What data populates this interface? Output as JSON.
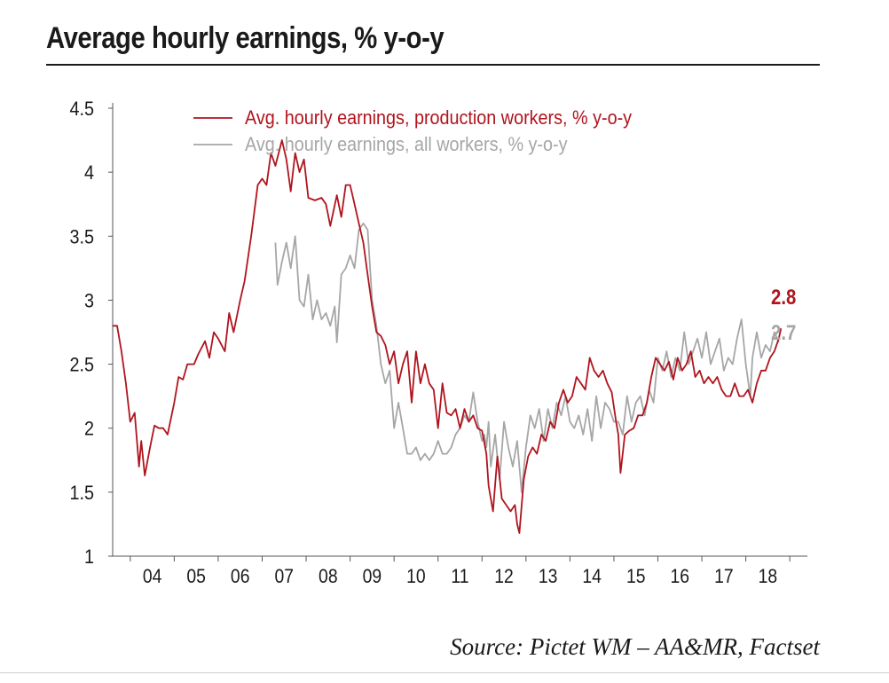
{
  "title": "Average hourly earnings, % y-o-y",
  "source": "Source: Pictet WM – AA&MR, Factset",
  "colors": {
    "production": "#b0141d",
    "all": "#a6a6a6",
    "axis": "#555555",
    "text": "#1a1a1a"
  },
  "chart_data": {
    "type": "line",
    "title": "Average hourly earnings, % y-o-y",
    "xlabel": "",
    "ylabel": "",
    "ylim": [
      1,
      4.5
    ],
    "xlim": [
      2003.6,
      2019.4
    ],
    "yticks": [
      "1",
      "1.5",
      "2",
      "2.5",
      "3",
      "3.5",
      "4",
      "4.5"
    ],
    "xticks": [
      {
        "label": "04",
        "x": 2004.5
      },
      {
        "label": "05",
        "x": 2005.5
      },
      {
        "label": "06",
        "x": 2006.5
      },
      {
        "label": "07",
        "x": 2007.5
      },
      {
        "label": "08",
        "x": 2008.5
      },
      {
        "label": "09",
        "x": 2009.5
      },
      {
        "label": "10",
        "x": 2010.5
      },
      {
        "label": "11",
        "x": 2011.5
      },
      {
        "label": "12",
        "x": 2012.5
      },
      {
        "label": "13",
        "x": 2013.5
      },
      {
        "label": "14",
        "x": 2014.5
      },
      {
        "label": "15",
        "x": 2015.5
      },
      {
        "label": "16",
        "x": 2016.5
      },
      {
        "label": "17",
        "x": 2017.5
      },
      {
        "label": "18",
        "x": 2018.5
      }
    ],
    "grid": false,
    "legend_position": "top-left",
    "series": [
      {
        "name": "Avg. hourly earnings, production workers, % y-o-y",
        "color": "#b0141d",
        "end_label": "2.8",
        "points": [
          [
            2003.6,
            2.8
          ],
          [
            2003.7,
            2.8
          ],
          [
            2003.8,
            2.6
          ],
          [
            2003.9,
            2.35
          ],
          [
            2004.0,
            2.05
          ],
          [
            2004.1,
            2.12
          ],
          [
            2004.2,
            1.7
          ],
          [
            2004.25,
            1.9
          ],
          [
            2004.33,
            1.63
          ],
          [
            2004.45,
            1.85
          ],
          [
            2004.55,
            2.02
          ],
          [
            2004.65,
            2.0
          ],
          [
            2004.75,
            2.0
          ],
          [
            2004.85,
            1.95
          ],
          [
            2005.0,
            2.2
          ],
          [
            2005.1,
            2.4
          ],
          [
            2005.2,
            2.38
          ],
          [
            2005.3,
            2.5
          ],
          [
            2005.45,
            2.5
          ],
          [
            2005.55,
            2.58
          ],
          [
            2005.7,
            2.68
          ],
          [
            2005.8,
            2.55
          ],
          [
            2005.9,
            2.75
          ],
          [
            2006.0,
            2.7
          ],
          [
            2006.15,
            2.6
          ],
          [
            2006.25,
            2.9
          ],
          [
            2006.35,
            2.75
          ],
          [
            2006.5,
            3.0
          ],
          [
            2006.6,
            3.15
          ],
          [
            2006.75,
            3.5
          ],
          [
            2006.9,
            3.9
          ],
          [
            2007.0,
            3.95
          ],
          [
            2007.1,
            3.9
          ],
          [
            2007.2,
            4.15
          ],
          [
            2007.3,
            4.05
          ],
          [
            2007.45,
            4.25
          ],
          [
            2007.55,
            4.1
          ],
          [
            2007.65,
            3.85
          ],
          [
            2007.75,
            4.15
          ],
          [
            2007.85,
            4.0
          ],
          [
            2007.95,
            4.1
          ],
          [
            2008.05,
            3.8
          ],
          [
            2008.2,
            3.78
          ],
          [
            2008.35,
            3.8
          ],
          [
            2008.45,
            3.75
          ],
          [
            2008.55,
            3.58
          ],
          [
            2008.7,
            3.82
          ],
          [
            2008.8,
            3.65
          ],
          [
            2008.9,
            3.9
          ],
          [
            2009.0,
            3.9
          ],
          [
            2009.1,
            3.75
          ],
          [
            2009.2,
            3.6
          ],
          [
            2009.3,
            3.45
          ],
          [
            2009.4,
            3.2
          ],
          [
            2009.5,
            2.95
          ],
          [
            2009.6,
            2.75
          ],
          [
            2009.7,
            2.72
          ],
          [
            2009.8,
            2.65
          ],
          [
            2009.9,
            2.5
          ],
          [
            2010.0,
            2.6
          ],
          [
            2010.1,
            2.35
          ],
          [
            2010.2,
            2.5
          ],
          [
            2010.3,
            2.6
          ],
          [
            2010.4,
            2.2
          ],
          [
            2010.5,
            2.6
          ],
          [
            2010.6,
            2.35
          ],
          [
            2010.7,
            2.5
          ],
          [
            2010.8,
            2.35
          ],
          [
            2010.9,
            2.3
          ],
          [
            2011.0,
            2.0
          ],
          [
            2011.1,
            2.35
          ],
          [
            2011.2,
            2.12
          ],
          [
            2011.3,
            2.1
          ],
          [
            2011.4,
            2.15
          ],
          [
            2011.5,
            2.0
          ],
          [
            2011.6,
            2.15
          ],
          [
            2011.7,
            2.05
          ],
          [
            2011.8,
            2.1
          ],
          [
            2011.9,
            2.0
          ],
          [
            2012.0,
            1.98
          ],
          [
            2012.1,
            1.8
          ],
          [
            2012.15,
            1.55
          ],
          [
            2012.2,
            1.45
          ],
          [
            2012.25,
            1.35
          ],
          [
            2012.35,
            1.78
          ],
          [
            2012.45,
            1.45
          ],
          [
            2012.55,
            1.4
          ],
          [
            2012.65,
            1.35
          ],
          [
            2012.75,
            1.4
          ],
          [
            2012.8,
            1.25
          ],
          [
            2012.85,
            1.18
          ],
          [
            2012.95,
            1.6
          ],
          [
            2013.05,
            1.78
          ],
          [
            2013.15,
            1.85
          ],
          [
            2013.25,
            1.8
          ],
          [
            2013.35,
            1.95
          ],
          [
            2013.45,
            1.9
          ],
          [
            2013.55,
            2.05
          ],
          [
            2013.65,
            2.0
          ],
          [
            2013.75,
            2.2
          ],
          [
            2013.85,
            2.3
          ],
          [
            2013.95,
            2.2
          ],
          [
            2014.05,
            2.25
          ],
          [
            2014.15,
            2.4
          ],
          [
            2014.25,
            2.35
          ],
          [
            2014.35,
            2.3
          ],
          [
            2014.45,
            2.55
          ],
          [
            2014.55,
            2.45
          ],
          [
            2014.65,
            2.4
          ],
          [
            2014.75,
            2.45
          ],
          [
            2014.85,
            2.35
          ],
          [
            2014.95,
            2.28
          ],
          [
            2015.05,
            2.05
          ],
          [
            2015.1,
            1.95
          ],
          [
            2015.15,
            1.65
          ],
          [
            2015.25,
            1.95
          ],
          [
            2015.35,
            1.98
          ],
          [
            2015.45,
            2.0
          ],
          [
            2015.55,
            2.1
          ],
          [
            2015.65,
            2.1
          ],
          [
            2015.75,
            2.2
          ],
          [
            2015.85,
            2.4
          ],
          [
            2015.95,
            2.55
          ],
          [
            2016.05,
            2.5
          ],
          [
            2016.15,
            2.45
          ],
          [
            2016.25,
            2.52
          ],
          [
            2016.35,
            2.38
          ],
          [
            2016.45,
            2.55
          ],
          [
            2016.55,
            2.45
          ],
          [
            2016.65,
            2.5
          ],
          [
            2016.75,
            2.6
          ],
          [
            2016.85,
            2.4
          ],
          [
            2016.95,
            2.45
          ],
          [
            2017.05,
            2.35
          ],
          [
            2017.15,
            2.4
          ],
          [
            2017.25,
            2.35
          ],
          [
            2017.35,
            2.4
          ],
          [
            2017.45,
            2.3
          ],
          [
            2017.55,
            2.25
          ],
          [
            2017.65,
            2.25
          ],
          [
            2017.75,
            2.35
          ],
          [
            2017.85,
            2.25
          ],
          [
            2017.95,
            2.25
          ],
          [
            2018.05,
            2.3
          ],
          [
            2018.15,
            2.2
          ],
          [
            2018.25,
            2.35
          ],
          [
            2018.35,
            2.45
          ],
          [
            2018.45,
            2.45
          ],
          [
            2018.55,
            2.55
          ],
          [
            2018.65,
            2.6
          ],
          [
            2018.75,
            2.7
          ],
          [
            2018.8,
            2.78
          ]
        ]
      },
      {
        "name": "Avg. hourly earnings, all workers, % y-o-y",
        "color": "#a6a6a6",
        "end_label": "2.7",
        "points": [
          [
            2007.3,
            3.45
          ],
          [
            2007.35,
            3.12
          ],
          [
            2007.45,
            3.3
          ],
          [
            2007.55,
            3.45
          ],
          [
            2007.65,
            3.25
          ],
          [
            2007.75,
            3.5
          ],
          [
            2007.85,
            3.0
          ],
          [
            2007.95,
            2.95
          ],
          [
            2008.05,
            3.2
          ],
          [
            2008.15,
            2.85
          ],
          [
            2008.25,
            3.0
          ],
          [
            2008.35,
            2.85
          ],
          [
            2008.45,
            2.9
          ],
          [
            2008.55,
            2.8
          ],
          [
            2008.65,
            2.95
          ],
          [
            2008.7,
            2.67
          ],
          [
            2008.8,
            3.2
          ],
          [
            2008.9,
            3.25
          ],
          [
            2009.0,
            3.35
          ],
          [
            2009.1,
            3.25
          ],
          [
            2009.2,
            3.55
          ],
          [
            2009.3,
            3.6
          ],
          [
            2009.4,
            3.55
          ],
          [
            2009.5,
            3.0
          ],
          [
            2009.6,
            2.8
          ],
          [
            2009.7,
            2.5
          ],
          [
            2009.8,
            2.35
          ],
          [
            2009.9,
            2.45
          ],
          [
            2010.0,
            2.0
          ],
          [
            2010.1,
            2.2
          ],
          [
            2010.2,
            2.0
          ],
          [
            2010.3,
            1.8
          ],
          [
            2010.4,
            1.8
          ],
          [
            2010.5,
            1.85
          ],
          [
            2010.6,
            1.75
          ],
          [
            2010.7,
            1.8
          ],
          [
            2010.8,
            1.75
          ],
          [
            2010.9,
            1.8
          ],
          [
            2011.0,
            1.9
          ],
          [
            2011.1,
            1.8
          ],
          [
            2011.2,
            1.8
          ],
          [
            2011.3,
            1.85
          ],
          [
            2011.4,
            1.95
          ],
          [
            2011.5,
            2.0
          ],
          [
            2011.6,
            2.1
          ],
          [
            2011.7,
            2.05
          ],
          [
            2011.8,
            2.28
          ],
          [
            2011.9,
            2.05
          ],
          [
            2012.0,
            1.9
          ],
          [
            2012.05,
            1.95
          ],
          [
            2012.1,
            1.85
          ],
          [
            2012.15,
            2.05
          ],
          [
            2012.2,
            1.7
          ],
          [
            2012.3,
            1.95
          ],
          [
            2012.4,
            1.6
          ],
          [
            2012.5,
            2.05
          ],
          [
            2012.6,
            1.85
          ],
          [
            2012.7,
            1.7
          ],
          [
            2012.8,
            1.9
          ],
          [
            2012.9,
            1.5
          ],
          [
            2013.0,
            1.85
          ],
          [
            2013.1,
            2.1
          ],
          [
            2013.2,
            2.0
          ],
          [
            2013.3,
            2.15
          ],
          [
            2013.4,
            1.9
          ],
          [
            2013.5,
            2.15
          ],
          [
            2013.6,
            2.0
          ],
          [
            2013.7,
            2.2
          ],
          [
            2013.8,
            2.1
          ],
          [
            2013.9,
            2.25
          ],
          [
            2014.0,
            2.05
          ],
          [
            2014.1,
            2.0
          ],
          [
            2014.2,
            2.1
          ],
          [
            2014.3,
            1.95
          ],
          [
            2014.4,
            2.15
          ],
          [
            2014.5,
            1.9
          ],
          [
            2014.6,
            2.25
          ],
          [
            2014.7,
            2.0
          ],
          [
            2014.8,
            2.2
          ],
          [
            2014.9,
            2.15
          ],
          [
            2015.0,
            2.05
          ],
          [
            2015.1,
            2.05
          ],
          [
            2015.2,
            1.95
          ],
          [
            2015.3,
            2.25
          ],
          [
            2015.4,
            2.05
          ],
          [
            2015.5,
            2.2
          ],
          [
            2015.6,
            2.25
          ],
          [
            2015.7,
            2.1
          ],
          [
            2015.8,
            2.3
          ],
          [
            2015.9,
            2.2
          ],
          [
            2016.0,
            2.55
          ],
          [
            2016.1,
            2.45
          ],
          [
            2016.2,
            2.6
          ],
          [
            2016.3,
            2.4
          ],
          [
            2016.4,
            2.55
          ],
          [
            2016.5,
            2.45
          ],
          [
            2016.6,
            2.75
          ],
          [
            2016.7,
            2.5
          ],
          [
            2016.8,
            2.6
          ],
          [
            2016.9,
            2.7
          ],
          [
            2017.0,
            2.55
          ],
          [
            2017.1,
            2.75
          ],
          [
            2017.2,
            2.5
          ],
          [
            2017.3,
            2.6
          ],
          [
            2017.4,
            2.7
          ],
          [
            2017.5,
            2.45
          ],
          [
            2017.6,
            2.55
          ],
          [
            2017.7,
            2.5
          ],
          [
            2017.8,
            2.7
          ],
          [
            2017.9,
            2.85
          ],
          [
            2018.0,
            2.5
          ],
          [
            2018.1,
            2.25
          ],
          [
            2018.15,
            2.55
          ],
          [
            2018.25,
            2.75
          ],
          [
            2018.35,
            2.55
          ],
          [
            2018.45,
            2.65
          ],
          [
            2018.55,
            2.6
          ],
          [
            2018.65,
            2.75
          ],
          [
            2018.75,
            2.67
          ]
        ]
      }
    ]
  }
}
